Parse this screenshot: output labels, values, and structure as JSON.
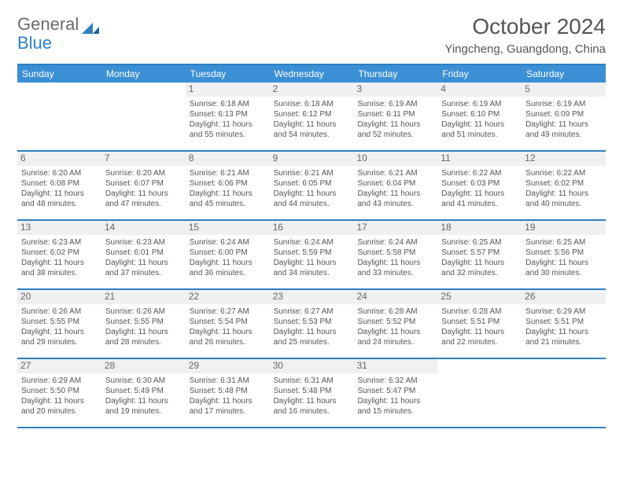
{
  "brand": {
    "part1": "General",
    "part2": "Blue"
  },
  "title": "October 2024",
  "location": "Yingcheng, Guangdong, China",
  "colors": {
    "header_bg": "#3b8fd4",
    "border": "#2f7fc2",
    "daynum_bg": "#eef0f2",
    "text": "#555555",
    "white": "#ffffff"
  },
  "dow": [
    "Sunday",
    "Monday",
    "Tuesday",
    "Wednesday",
    "Thursday",
    "Friday",
    "Saturday"
  ],
  "weeks": [
    [
      {
        "n": "",
        "sr": "",
        "ss": "",
        "dl": ""
      },
      {
        "n": "",
        "sr": "",
        "ss": "",
        "dl": ""
      },
      {
        "n": "1",
        "sr": "Sunrise: 6:18 AM",
        "ss": "Sunset: 6:13 PM",
        "dl": "Daylight: 11 hours and 55 minutes."
      },
      {
        "n": "2",
        "sr": "Sunrise: 6:18 AM",
        "ss": "Sunset: 6:12 PM",
        "dl": "Daylight: 11 hours and 54 minutes."
      },
      {
        "n": "3",
        "sr": "Sunrise: 6:19 AM",
        "ss": "Sunset: 6:11 PM",
        "dl": "Daylight: 11 hours and 52 minutes."
      },
      {
        "n": "4",
        "sr": "Sunrise: 6:19 AM",
        "ss": "Sunset: 6:10 PM",
        "dl": "Daylight: 11 hours and 51 minutes."
      },
      {
        "n": "5",
        "sr": "Sunrise: 6:19 AM",
        "ss": "Sunset: 6:09 PM",
        "dl": "Daylight: 11 hours and 49 minutes."
      }
    ],
    [
      {
        "n": "6",
        "sr": "Sunrise: 6:20 AM",
        "ss": "Sunset: 6:08 PM",
        "dl": "Daylight: 11 hours and 48 minutes."
      },
      {
        "n": "7",
        "sr": "Sunrise: 6:20 AM",
        "ss": "Sunset: 6:07 PM",
        "dl": "Daylight: 11 hours and 47 minutes."
      },
      {
        "n": "8",
        "sr": "Sunrise: 6:21 AM",
        "ss": "Sunset: 6:06 PM",
        "dl": "Daylight: 11 hours and 45 minutes."
      },
      {
        "n": "9",
        "sr": "Sunrise: 6:21 AM",
        "ss": "Sunset: 6:05 PM",
        "dl": "Daylight: 11 hours and 44 minutes."
      },
      {
        "n": "10",
        "sr": "Sunrise: 6:21 AM",
        "ss": "Sunset: 6:04 PM",
        "dl": "Daylight: 11 hours and 43 minutes."
      },
      {
        "n": "11",
        "sr": "Sunrise: 6:22 AM",
        "ss": "Sunset: 6:03 PM",
        "dl": "Daylight: 11 hours and 41 minutes."
      },
      {
        "n": "12",
        "sr": "Sunrise: 6:22 AM",
        "ss": "Sunset: 6:02 PM",
        "dl": "Daylight: 11 hours and 40 minutes."
      }
    ],
    [
      {
        "n": "13",
        "sr": "Sunrise: 6:23 AM",
        "ss": "Sunset: 6:02 PM",
        "dl": "Daylight: 11 hours and 38 minutes."
      },
      {
        "n": "14",
        "sr": "Sunrise: 6:23 AM",
        "ss": "Sunset: 6:01 PM",
        "dl": "Daylight: 11 hours and 37 minutes."
      },
      {
        "n": "15",
        "sr": "Sunrise: 6:24 AM",
        "ss": "Sunset: 6:00 PM",
        "dl": "Daylight: 11 hours and 36 minutes."
      },
      {
        "n": "16",
        "sr": "Sunrise: 6:24 AM",
        "ss": "Sunset: 5:59 PM",
        "dl": "Daylight: 11 hours and 34 minutes."
      },
      {
        "n": "17",
        "sr": "Sunrise: 6:24 AM",
        "ss": "Sunset: 5:58 PM",
        "dl": "Daylight: 11 hours and 33 minutes."
      },
      {
        "n": "18",
        "sr": "Sunrise: 6:25 AM",
        "ss": "Sunset: 5:57 PM",
        "dl": "Daylight: 11 hours and 32 minutes."
      },
      {
        "n": "19",
        "sr": "Sunrise: 6:25 AM",
        "ss": "Sunset: 5:56 PM",
        "dl": "Daylight: 11 hours and 30 minutes."
      }
    ],
    [
      {
        "n": "20",
        "sr": "Sunrise: 6:26 AM",
        "ss": "Sunset: 5:55 PM",
        "dl": "Daylight: 11 hours and 29 minutes."
      },
      {
        "n": "21",
        "sr": "Sunrise: 6:26 AM",
        "ss": "Sunset: 5:55 PM",
        "dl": "Daylight: 11 hours and 28 minutes."
      },
      {
        "n": "22",
        "sr": "Sunrise: 6:27 AM",
        "ss": "Sunset: 5:54 PM",
        "dl": "Daylight: 11 hours and 26 minutes."
      },
      {
        "n": "23",
        "sr": "Sunrise: 6:27 AM",
        "ss": "Sunset: 5:53 PM",
        "dl": "Daylight: 11 hours and 25 minutes."
      },
      {
        "n": "24",
        "sr": "Sunrise: 6:28 AM",
        "ss": "Sunset: 5:52 PM",
        "dl": "Daylight: 11 hours and 24 minutes."
      },
      {
        "n": "25",
        "sr": "Sunrise: 6:28 AM",
        "ss": "Sunset: 5:51 PM",
        "dl": "Daylight: 11 hours and 22 minutes."
      },
      {
        "n": "26",
        "sr": "Sunrise: 6:29 AM",
        "ss": "Sunset: 5:51 PM",
        "dl": "Daylight: 11 hours and 21 minutes."
      }
    ],
    [
      {
        "n": "27",
        "sr": "Sunrise: 6:29 AM",
        "ss": "Sunset: 5:50 PM",
        "dl": "Daylight: 11 hours and 20 minutes."
      },
      {
        "n": "28",
        "sr": "Sunrise: 6:30 AM",
        "ss": "Sunset: 5:49 PM",
        "dl": "Daylight: 11 hours and 19 minutes."
      },
      {
        "n": "29",
        "sr": "Sunrise: 6:31 AM",
        "ss": "Sunset: 5:48 PM",
        "dl": "Daylight: 11 hours and 17 minutes."
      },
      {
        "n": "30",
        "sr": "Sunrise: 6:31 AM",
        "ss": "Sunset: 5:48 PM",
        "dl": "Daylight: 11 hours and 16 minutes."
      },
      {
        "n": "31",
        "sr": "Sunrise: 6:32 AM",
        "ss": "Sunset: 5:47 PM",
        "dl": "Daylight: 11 hours and 15 minutes."
      },
      {
        "n": "",
        "sr": "",
        "ss": "",
        "dl": ""
      },
      {
        "n": "",
        "sr": "",
        "ss": "",
        "dl": ""
      }
    ]
  ]
}
